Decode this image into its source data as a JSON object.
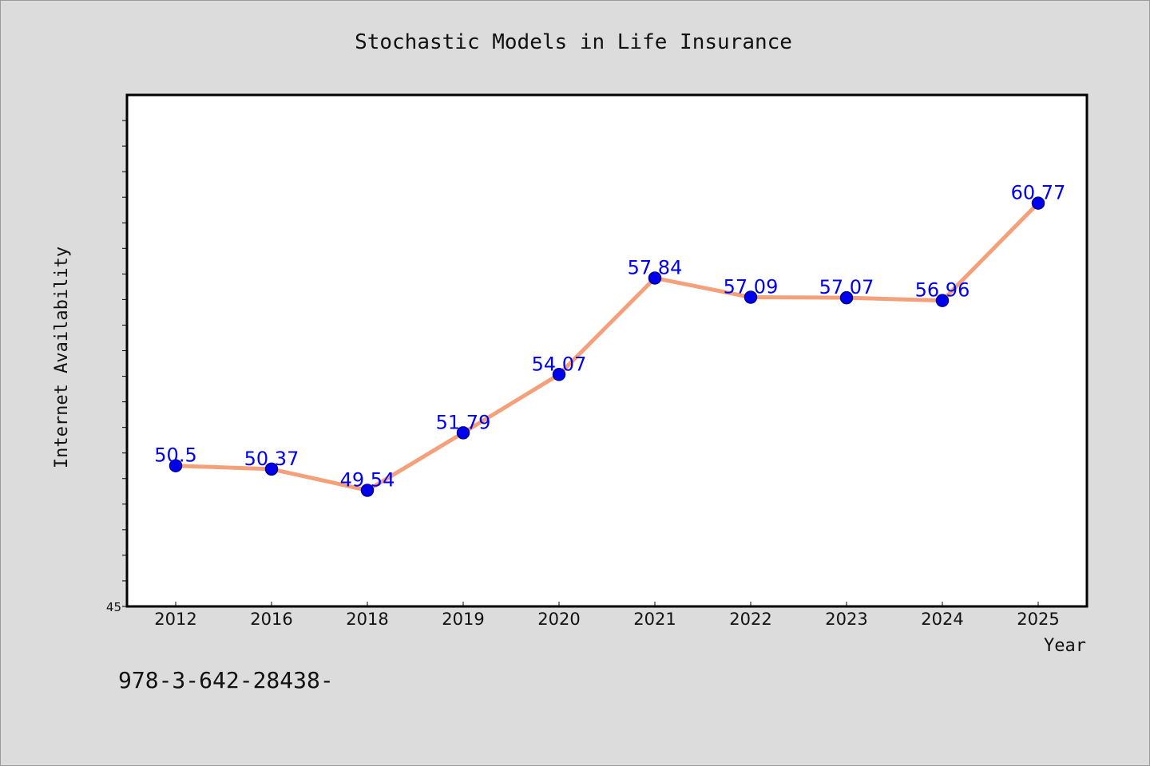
{
  "chart_data": {
    "type": "line",
    "title": "Stochastic Models in Life Insurance",
    "xlabel": "Year",
    "ylabel": "Internet Availability",
    "categories": [
      "2012",
      "2016",
      "2018",
      "2019",
      "2020",
      "2021",
      "2022",
      "2023",
      "2024",
      "2025"
    ],
    "series": [
      {
        "values": [
          50.5,
          50.37,
          49.54,
          51.79,
          54.07,
          57.84,
          57.09,
          57.07,
          56.96,
          60.77
        ],
        "data_labels": [
          "50.5",
          "50.37",
          "49.54",
          "51.79",
          "54.07",
          "57.84",
          "57.09",
          "57.07",
          "56.96",
          "60.77"
        ]
      }
    ],
    "ylim": [
      45,
      65
    ],
    "y_tick_labels_shown": [
      "45"
    ],
    "grid": false,
    "legend": "none",
    "colors": {
      "line": "#f4a07a",
      "marker_fill": "#0000ee",
      "marker_stroke": "#00008b",
      "data_label": "#0000ee",
      "plot_background": "#ffffff",
      "page_background": "#dcdcdc"
    }
  },
  "footnote": "978-3-642-28438-"
}
